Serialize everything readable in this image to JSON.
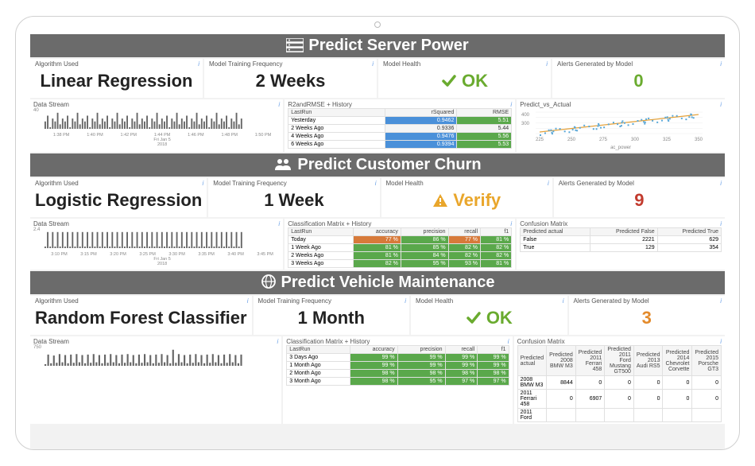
{
  "panels": [
    {
      "title": "Predict Server Power",
      "icon": "server",
      "metrics": {
        "algo_label": "Algorithm Used",
        "algo": "Linear Regression",
        "freq_label": "Model Training Frequency",
        "freq": "2 Weeks",
        "health_label": "Model Health",
        "health": "OK",
        "health_state": "ok",
        "alerts_label": "Alerts Generated by Model",
        "alerts": "0",
        "alerts_color": "#6aab2f"
      },
      "stream": {
        "label": "Data Stream",
        "y_top": "40",
        "ticks": [
          "1:38 PM",
          "1:40 PM",
          "1:42 PM",
          "1:44 PM",
          "1:46 PM",
          "1:48 PM",
          "1:50 PM"
        ],
        "subticks": [
          "Fri Jan 5",
          "2018"
        ],
        "color": "#666666",
        "values": [
          20,
          22,
          18,
          21,
          20,
          23,
          19,
          21,
          20,
          22,
          18,
          21,
          20,
          23,
          19,
          21,
          20,
          22,
          18,
          21,
          20,
          23,
          19,
          21,
          20,
          22,
          18,
          21,
          20,
          23,
          19,
          21,
          20,
          22,
          18,
          21,
          20,
          23,
          19,
          21,
          20,
          22,
          18,
          21,
          20,
          23,
          19,
          21,
          20,
          22,
          18,
          21,
          20,
          23,
          19,
          21,
          20,
          22,
          18,
          21,
          20,
          23,
          19,
          21,
          20,
          22,
          18,
          21,
          20,
          23,
          19,
          21,
          20,
          22,
          18,
          21,
          20,
          23,
          19,
          21
        ]
      },
      "history": {
        "label": "R2andRMSE + History",
        "cols": [
          "LastRun",
          "rSquared",
          "RMSE"
        ],
        "rows": [
          {
            "k": "Yesterday",
            "r2": "0.9462",
            "rmse": "5.51",
            "r2c": "#4a90d9",
            "rmc": "#5aa84b"
          },
          {
            "k": "2 Weeks Ago",
            "r2": "0.9336",
            "rmse": "5.44",
            "r2c": "#f5f5f5",
            "rmc": "#f5f5f5"
          },
          {
            "k": "4 Weeks Ago",
            "r2": "0.9476",
            "rmse": "5.56",
            "r2c": "#4a90d9",
            "rmc": "#5aa84b"
          },
          {
            "k": "6 Weeks Ago",
            "r2": "0.9394",
            "rmse": "5.53",
            "r2c": "#4a90d9",
            "rmc": "#5aa84b"
          }
        ]
      },
      "right_chart": {
        "label": "Predict_vs_Actual",
        "x_label": "ac_power",
        "y_top": "400",
        "y_mid": "300",
        "x_ticks": [
          "225",
          "250",
          "275",
          "300",
          "325",
          "350"
        ],
        "line_color": "#e4a23b",
        "point_color": "#5aa8d8"
      }
    },
    {
      "title": "Predict Customer Churn",
      "icon": "users",
      "metrics": {
        "algo_label": "Algorithm Used",
        "algo": "Logistic Regression",
        "freq_label": "Model Training Frequency",
        "freq": "1 Week",
        "health_label": "Model Health",
        "health": "Verify",
        "health_state": "warn",
        "alerts_label": "Alerts Generated by Model",
        "alerts": "9",
        "alerts_color": "#c23b2e"
      },
      "stream": {
        "label": "Data Stream",
        "y_top": "2.4",
        "ticks": [
          "3:10 PM",
          "3:15 PM",
          "3:20 PM",
          "3:25 PM",
          "3:30 PM",
          "3:35 PM",
          "3:40 PM",
          "3:45 PM"
        ],
        "subticks": [
          "Fri Jan 5",
          "2018"
        ],
        "color": "#666666",
        "values": [
          1,
          2,
          1,
          2,
          1,
          2,
          1,
          2,
          1,
          2,
          1,
          2,
          1,
          2,
          1,
          2,
          1,
          2,
          1,
          2,
          1,
          2,
          1,
          2,
          1,
          2,
          1,
          2,
          1,
          2,
          1,
          2,
          1,
          2,
          1,
          2,
          1,
          2,
          1,
          2,
          1,
          2,
          1,
          2,
          1,
          2,
          1,
          2,
          1,
          2,
          1,
          2,
          1,
          2,
          1,
          2,
          1,
          2,
          1,
          2,
          1,
          2,
          1,
          2,
          1,
          2,
          1,
          2,
          1,
          2,
          1,
          2,
          1,
          2,
          1,
          2,
          1,
          2,
          1,
          2
        ]
      },
      "history": {
        "label": "Classification Matrix + History",
        "cols": [
          "LastRun",
          "accuracy",
          "precision",
          "recall",
          "f1"
        ],
        "rows": [
          {
            "k": "Today",
            "v": [
              "77 %",
              "86 %",
              "77 %",
              "81 %"
            ],
            "c": [
              "#d77a3a",
              "#5aa84b",
              "#d77a3a",
              "#5aa84b"
            ]
          },
          {
            "k": "1 Week Ago",
            "v": [
              "81 %",
              "85 %",
              "82 %",
              "82 %"
            ],
            "c": [
              "#5aa84b",
              "#5aa84b",
              "#5aa84b",
              "#5aa84b"
            ]
          },
          {
            "k": "2 Weeks Ago",
            "v": [
              "81 %",
              "84 %",
              "82 %",
              "82 %"
            ],
            "c": [
              "#5aa84b",
              "#5aa84b",
              "#5aa84b",
              "#5aa84b"
            ]
          },
          {
            "k": "3 Weeks Ago",
            "v": [
              "82 %",
              "95 %",
              "93 %",
              "81 %"
            ],
            "c": [
              "#5aa84b",
              "#5aa84b",
              "#5aa84b",
              "#5aa84b"
            ]
          }
        ]
      },
      "confusion": {
        "label": "Confusion Matrix",
        "cols": [
          "Predicted actual",
          "Predicted False",
          "Predicted True"
        ],
        "rows": [
          {
            "k": "False",
            "v": [
              "2221",
              "629"
            ]
          },
          {
            "k": "True",
            "v": [
              "129",
              "354"
            ]
          }
        ]
      }
    },
    {
      "title": "Predict Vehicle Maintenance",
      "icon": "globe",
      "metrics": {
        "algo_label": "Algorithm Used",
        "algo": "Random Forest Classifier",
        "freq_label": "Model Training Frequency",
        "freq": "1 Month",
        "health_label": "Model Health",
        "health": "OK",
        "health_state": "ok",
        "alerts_label": "Alerts Generated by Model",
        "alerts": "3",
        "alerts_color": "#e38a2a"
      },
      "stream": {
        "label": "Data Stream",
        "y_top": "750",
        "y_mid": "500",
        "color": "#666666",
        "values": [
          400,
          600,
          420,
          580,
          430,
          610,
          440,
          590,
          420,
          600,
          430,
          610,
          440,
          590,
          420,
          600,
          430,
          610,
          440,
          590,
          420,
          600,
          430,
          610,
          440,
          590,
          420,
          600,
          430,
          610,
          440,
          590,
          420,
          600,
          430,
          610,
          440,
          590,
          420,
          600,
          430,
          610,
          440,
          590,
          420,
          700,
          430,
          610,
          440,
          590,
          420,
          600,
          430,
          610,
          440,
          590,
          420,
          600,
          430,
          610,
          440,
          590,
          420,
          600,
          430,
          610,
          440,
          590,
          420,
          600
        ]
      },
      "history": {
        "label": "Classification Matrix + History",
        "cols": [
          "LastRun",
          "accuracy",
          "precision",
          "recall",
          "f1"
        ],
        "rows": [
          {
            "k": "3 Days Ago",
            "v": [
              "99 %",
              "99 %",
              "99 %",
              "99 %"
            ],
            "c": [
              "#5aa84b",
              "#5aa84b",
              "#5aa84b",
              "#5aa84b"
            ]
          },
          {
            "k": "1 Month Ago",
            "v": [
              "99 %",
              "99 %",
              "99 %",
              "99 %"
            ],
            "c": [
              "#5aa84b",
              "#5aa84b",
              "#5aa84b",
              "#5aa84b"
            ]
          },
          {
            "k": "2 Month Ago",
            "v": [
              "98 %",
              "98 %",
              "98 %",
              "98 %"
            ],
            "c": [
              "#5aa84b",
              "#5aa84b",
              "#5aa84b",
              "#5aa84b"
            ]
          },
          {
            "k": "3 Month Ago",
            "v": [
              "98 %",
              "95 %",
              "97 %",
              "97 %"
            ],
            "c": [
              "#5aa84b",
              "#5aa84b",
              "#5aa84b",
              "#5aa84b"
            ]
          }
        ]
      },
      "confusion": {
        "label": "Confusion Matrix",
        "cols": [
          "Predicted actual",
          "Predicted 2008 BMW M3",
          "Predicted 2011 Ferrari 458",
          "Predicted 2011 Ford Mustang GT500",
          "Predicted 2013 Audi RS5",
          "Predicted 2014 Chevrolet Corvette",
          "Predicted 2015 Porsche GT3"
        ],
        "rows": [
          {
            "k": "2008 BMW M3",
            "v": [
              "8844",
              "0",
              "0",
              "0",
              "0",
              "0"
            ]
          },
          {
            "k": "2011 Ferrari 458",
            "v": [
              "0",
              "6907",
              "0",
              "0",
              "0",
              "0"
            ]
          },
          {
            "k": "2011 Ford",
            "v": [
              "",
              "",
              "",
              "",
              "",
              ""
            ]
          }
        ]
      }
    }
  ]
}
